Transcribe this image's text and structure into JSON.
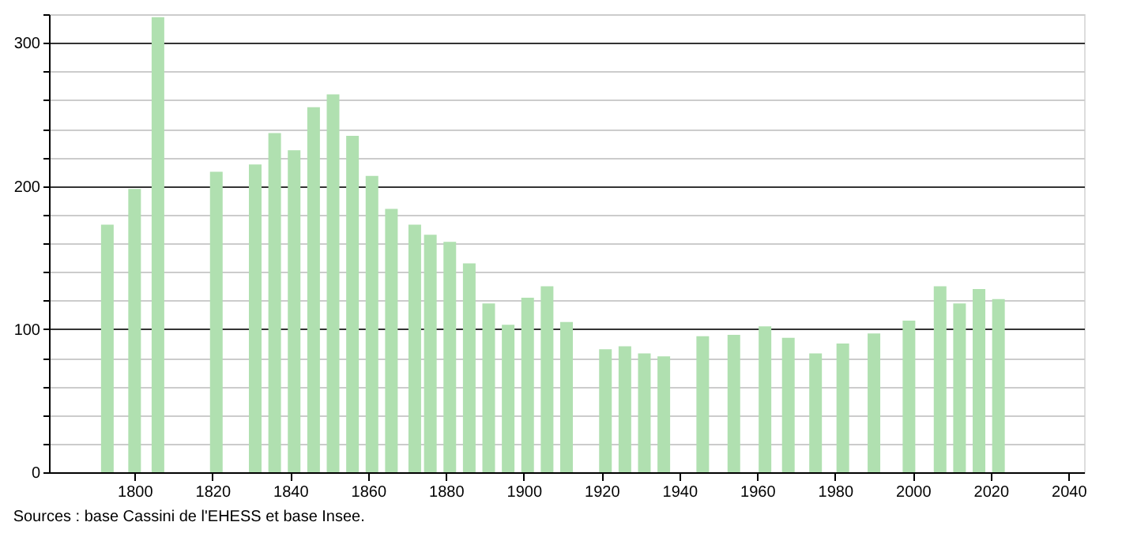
{
  "chart_data": {
    "type": "bar",
    "x": [
      1793,
      1800,
      1806,
      1821,
      1831,
      1836,
      1841,
      1846,
      1851,
      1856,
      1861,
      1866,
      1872,
      1876,
      1881,
      1886,
      1891,
      1896,
      1901,
      1906,
      1911,
      1921,
      1926,
      1931,
      1936,
      1946,
      1954,
      1962,
      1968,
      1975,
      1982,
      1990,
      1999,
      2007,
      2012,
      2017,
      2022
    ],
    "values": [
      173,
      198,
      318,
      210,
      215,
      237,
      225,
      255,
      264,
      235,
      207,
      184,
      173,
      166,
      161,
      146,
      118,
      103,
      122,
      130,
      105,
      86,
      88,
      83,
      81,
      95,
      96,
      102,
      94,
      83,
      90,
      97,
      106,
      130,
      118,
      128,
      121
    ],
    "color": "#b0e0b0",
    "xlim": [
      1778,
      2044
    ],
    "xticks": [
      1800,
      1820,
      1840,
      1860,
      1880,
      1900,
      1920,
      1940,
      1960,
      1980,
      2000,
      2020,
      2040
    ],
    "ylim": [
      0,
      320
    ],
    "yticks": [
      0,
      {
        "value": 20,
        "label": null
      },
      {
        "value": 40,
        "label": null
      },
      {
        "value": 60,
        "label": null
      },
      {
        "value": 80,
        "label": null
      },
      100,
      {
        "value": 120,
        "label": null
      },
      {
        "value": 140,
        "label": null
      },
      {
        "value": 160,
        "label": null
      },
      {
        "value": 180,
        "label": null
      },
      200,
      {
        "value": 220,
        "label": null
      },
      {
        "value": 240,
        "label": null
      },
      {
        "value": 260,
        "label": null
      },
      {
        "value": 280,
        "label": null
      },
      300,
      {
        "value": 320,
        "label": null
      }
    ],
    "grid": "y",
    "annotations": [
      "Sources : base Cassini de l'EHESS et base Insee."
    ]
  }
}
